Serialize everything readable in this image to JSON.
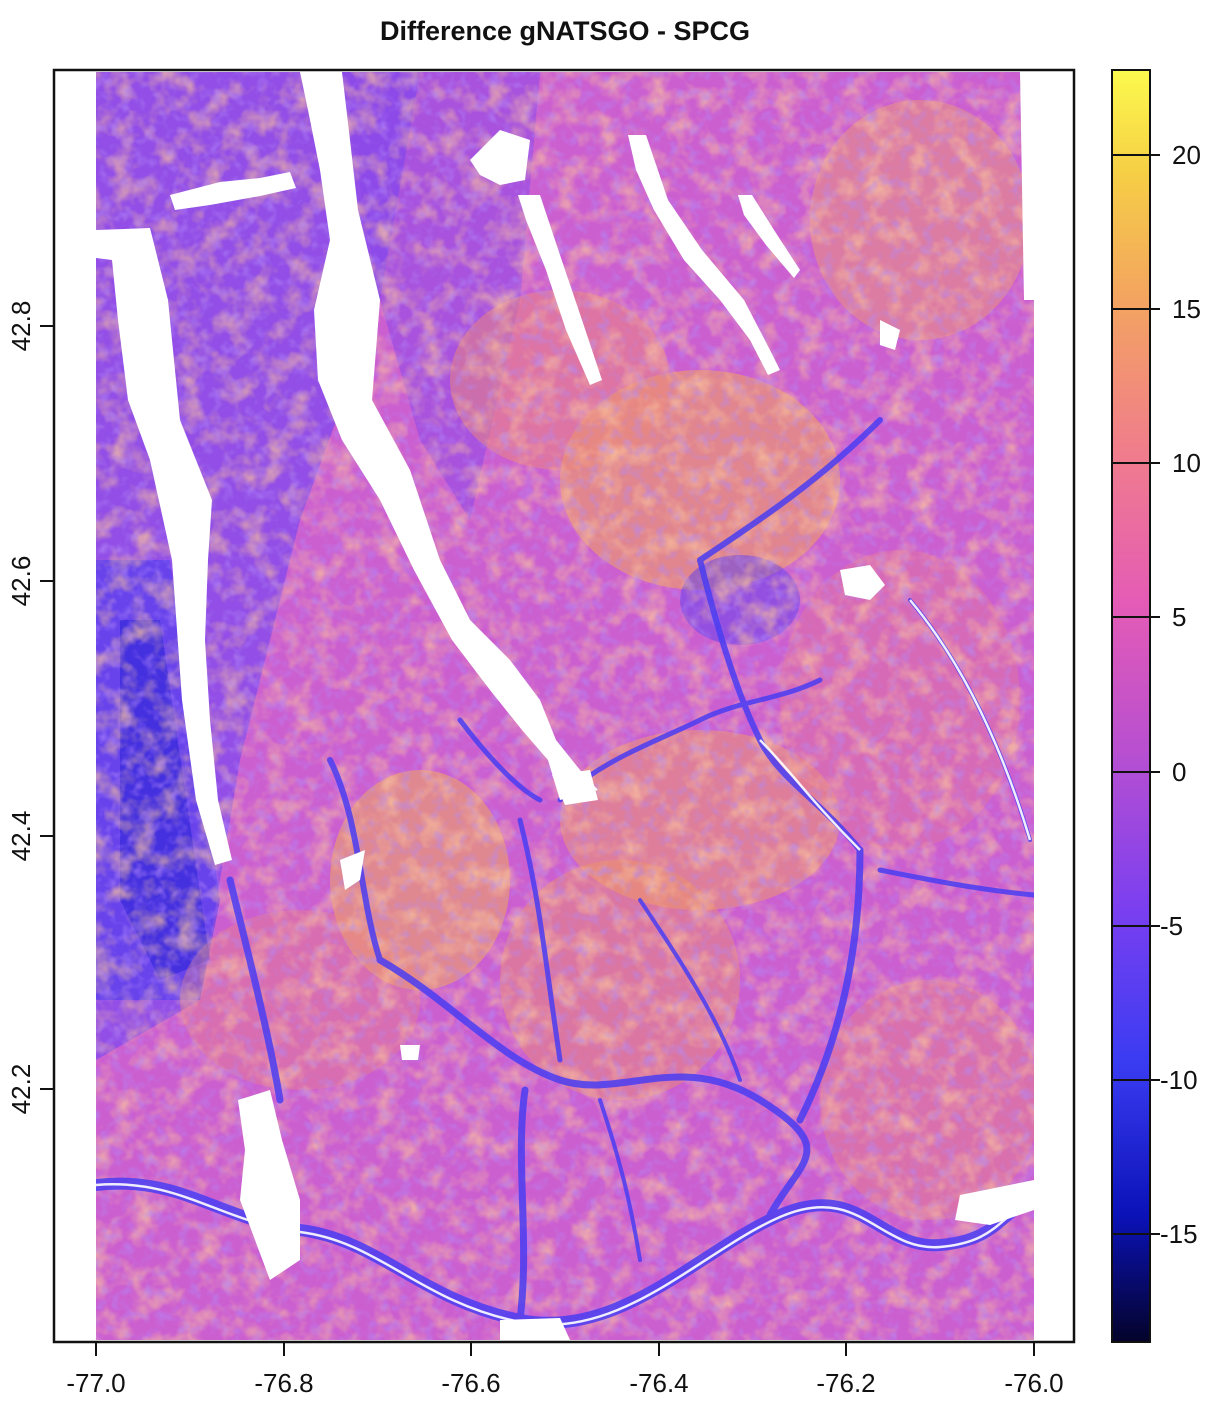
{
  "title": "Difference gNATSGO - SPCG",
  "x_ticks": [
    "-77.0",
    "-76.8",
    "-76.6",
    "-76.4",
    "-76.2",
    "-76.0"
  ],
  "y_ticks": [
    "42.2",
    "42.4",
    "42.6",
    "42.8"
  ],
  "colorbar": {
    "ticks": [
      "20",
      "15",
      "10",
      "5",
      "0",
      "-5",
      "-10",
      "-15"
    ],
    "stops": [
      "#04032a",
      "#0b12b8",
      "#3a3cf2",
      "#8b45ea",
      "#e45bb6",
      "#f29585",
      "#f6c24c",
      "#fcfa4e"
    ]
  },
  "chart_data": {
    "type": "heatmap",
    "title": "Difference gNATSGO - SPCG",
    "xlim": [
      -77.0,
      -76.0
    ],
    "ylim": [
      42.0,
      42.98
    ],
    "x_ticks": [
      -77.0,
      -76.8,
      -76.6,
      -76.4,
      -76.2,
      -76.0
    ],
    "y_ticks": [
      42.2,
      42.4,
      42.6,
      42.8
    ],
    "color_scale": {
      "min": -18.5,
      "max": 22.5,
      "ticks": [
        -15,
        -10,
        -5,
        0,
        5,
        10,
        15,
        20
      ]
    }
  }
}
